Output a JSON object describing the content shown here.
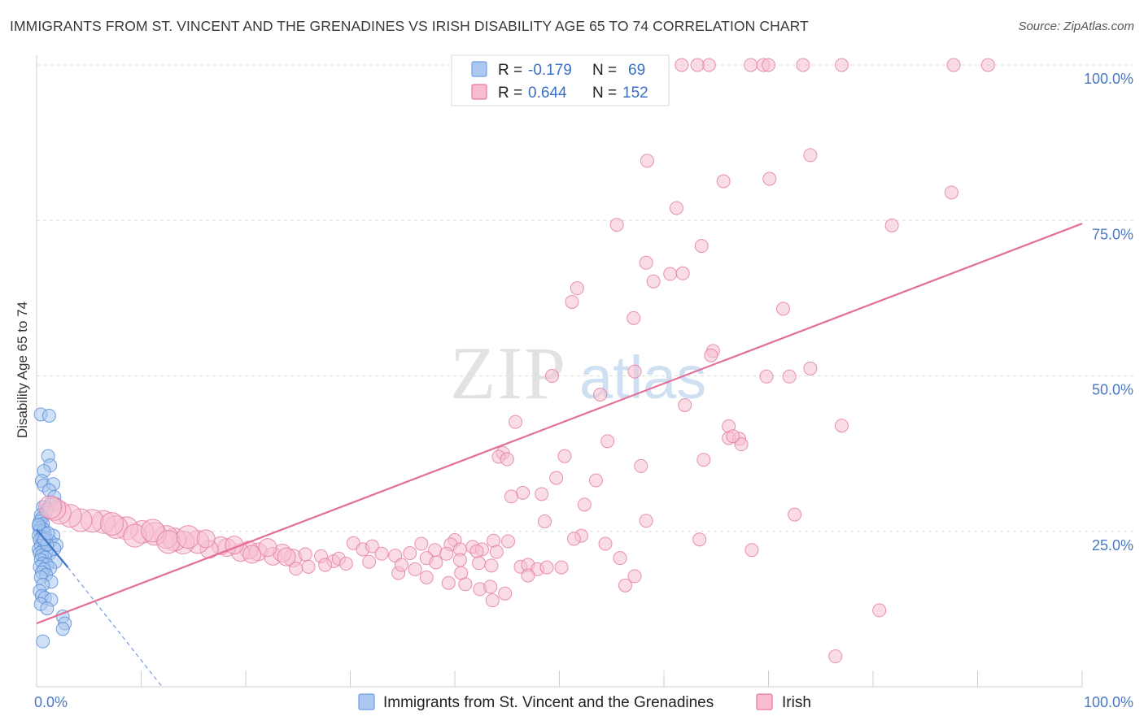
{
  "title": "IMMIGRANTS FROM ST. VINCENT AND THE GRENADINES VS IRISH DISABILITY AGE 65 TO 74 CORRELATION CHART",
  "source": "Source: ZipAtlas.com",
  "watermark": {
    "zip": "ZIP",
    "atlas": "atlas"
  },
  "chart_data": {
    "type": "scatter",
    "xlabel": "",
    "ylabel": "Disability Age 65 to 74",
    "xlim": [
      0,
      100
    ],
    "ylim": [
      0,
      100
    ],
    "x_tick_labels": [
      {
        "value": 0,
        "label": "0.0%"
      },
      {
        "value": 100,
        "label": "100.0%"
      }
    ],
    "y_tick_labels": [
      {
        "value": 25,
        "label": "25.0%"
      },
      {
        "value": 50,
        "label": "50.0%"
      },
      {
        "value": 75,
        "label": "75.0%"
      },
      {
        "value": 100,
        "label": "100.0%"
      }
    ],
    "grid": true,
    "legend_position": "top-center",
    "stats": [
      {
        "r_label": "R =",
        "r_value": "-0.179",
        "n_label": "N =",
        "n_value": "69",
        "color": "#6f9fe0",
        "fill": "#aac8f0"
      },
      {
        "r_label": "R =",
        "r_value": "0.644",
        "n_label": "N =",
        "n_value": "152",
        "color": "#e8799c",
        "fill": "#f7bccf"
      }
    ],
    "series": [
      {
        "name": "Immigrants from St. Vincent and the Grenadines",
        "color": "#5b8fd6",
        "fill": "#a9c6ee",
        "trend": {
          "x0": 0.0,
          "y0": 25.3,
          "x1": 3.0,
          "y1": 19.2,
          "dash_x1": 12.0,
          "dash_y1": 0.0
        },
        "points": [
          [
            0.4,
            43.8
          ],
          [
            1.2,
            43.6
          ],
          [
            1.1,
            37.1
          ],
          [
            1.3,
            35.6
          ],
          [
            0.7,
            34.7
          ],
          [
            0.5,
            33.1
          ],
          [
            0.7,
            32.4
          ],
          [
            1.6,
            32.6
          ],
          [
            1.2,
            31.6
          ],
          [
            1.7,
            30.5
          ],
          [
            1.4,
            29.6
          ],
          [
            1.8,
            29.4
          ],
          [
            0.6,
            28.9
          ],
          [
            1.0,
            28.6
          ],
          [
            0.9,
            28.0
          ],
          [
            0.4,
            27.6
          ],
          [
            0.5,
            27.1
          ],
          [
            0.3,
            26.6
          ],
          [
            0.6,
            26.2
          ],
          [
            0.2,
            25.9
          ],
          [
            0.4,
            25.6
          ],
          [
            0.7,
            25.3
          ],
          [
            0.3,
            25.1
          ],
          [
            0.6,
            24.9
          ],
          [
            0.8,
            24.6
          ],
          [
            0.2,
            24.3
          ],
          [
            1.6,
            24.3
          ],
          [
            0.5,
            24.1
          ],
          [
            0.9,
            23.9
          ],
          [
            0.3,
            23.6
          ],
          [
            1.3,
            23.4
          ],
          [
            0.6,
            23.2
          ],
          [
            1.9,
            22.8
          ],
          [
            0.4,
            22.7
          ],
          [
            0.8,
            22.5
          ],
          [
            1.7,
            22.2
          ],
          [
            0.2,
            22.1
          ],
          [
            0.6,
            21.9
          ],
          [
            0.9,
            21.7
          ],
          [
            0.3,
            21.5
          ],
          [
            1.2,
            21.4
          ],
          [
            0.5,
            21.1
          ],
          [
            0.8,
            20.8
          ],
          [
            0.4,
            20.4
          ],
          [
            1.8,
            20.1
          ],
          [
            0.6,
            19.8
          ],
          [
            1.0,
            19.6
          ],
          [
            0.3,
            19.3
          ],
          [
            1.3,
            19.1
          ],
          [
            0.7,
            18.9
          ],
          [
            0.5,
            18.4
          ],
          [
            0.9,
            18.0
          ],
          [
            0.4,
            17.6
          ],
          [
            1.4,
            16.9
          ],
          [
            0.6,
            16.4
          ],
          [
            0.3,
            15.4
          ],
          [
            0.5,
            14.6
          ],
          [
            0.8,
            14.3
          ],
          [
            1.4,
            14.0
          ],
          [
            0.4,
            13.3
          ],
          [
            1.0,
            12.6
          ],
          [
            2.5,
            11.3
          ],
          [
            2.7,
            10.2
          ],
          [
            2.5,
            9.3
          ],
          [
            0.6,
            7.3
          ],
          [
            1.0,
            22.9
          ],
          [
            0.7,
            23.7
          ],
          [
            1.1,
            24.7
          ],
          [
            0.2,
            26.1
          ]
        ]
      },
      {
        "name": "Irish",
        "color": "#e47fa0",
        "fill": "#f6bfd0",
        "trend": {
          "x0": 0.0,
          "y0": 10.2,
          "x1": 100.0,
          "y1": 74.5
        },
        "points": [
          [
            61.7,
            100
          ],
          [
            64.3,
            100
          ],
          [
            68.3,
            100
          ],
          [
            69.5,
            100
          ],
          [
            70.0,
            100
          ],
          [
            73.3,
            100
          ],
          [
            77.0,
            100
          ],
          [
            87.7,
            100
          ],
          [
            91.0,
            100
          ],
          [
            63.2,
            100
          ],
          [
            74.0,
            85.5
          ],
          [
            58.4,
            84.6
          ],
          [
            65.7,
            81.3
          ],
          [
            70.1,
            81.7
          ],
          [
            87.5,
            79.5
          ],
          [
            61.2,
            77.0
          ],
          [
            55.5,
            74.3
          ],
          [
            81.8,
            74.2
          ],
          [
            63.6,
            70.9
          ],
          [
            58.3,
            68.2
          ],
          [
            60.6,
            66.4
          ],
          [
            61.8,
            66.5
          ],
          [
            51.7,
            64.1
          ],
          [
            51.2,
            61.9
          ],
          [
            71.4,
            60.8
          ],
          [
            57.1,
            59.3
          ],
          [
            64.7,
            54.0
          ],
          [
            57.2,
            50.7
          ],
          [
            49.3,
            50.0
          ],
          [
            69.8,
            49.9
          ],
          [
            72.0,
            49.9
          ],
          [
            74.0,
            51.2
          ],
          [
            53.9,
            47.0
          ],
          [
            62.0,
            45.3
          ],
          [
            45.8,
            42.6
          ],
          [
            66.2,
            41.9
          ],
          [
            66.2,
            40.0
          ],
          [
            67.2,
            39.9
          ],
          [
            67.4,
            39.0
          ],
          [
            77.0,
            42.0
          ],
          [
            54.6,
            39.5
          ],
          [
            50.5,
            37.1
          ],
          [
            44.6,
            37.6
          ],
          [
            44.2,
            37.0
          ],
          [
            45.0,
            36.6
          ],
          [
            63.8,
            36.5
          ],
          [
            57.8,
            35.5
          ],
          [
            49.7,
            33.6
          ],
          [
            53.5,
            33.2
          ],
          [
            46.5,
            31.2
          ],
          [
            48.3,
            31.0
          ],
          [
            45.4,
            30.6
          ],
          [
            52.4,
            29.3
          ],
          [
            72.5,
            27.7
          ],
          [
            48.6,
            26.6
          ],
          [
            40.0,
            23.6
          ],
          [
            43.7,
            23.5
          ],
          [
            45.1,
            23.4
          ],
          [
            52.1,
            24.3
          ],
          [
            63.4,
            23.7
          ],
          [
            36.8,
            23.0
          ],
          [
            39.6,
            22.9
          ],
          [
            40.5,
            22.1
          ],
          [
            41.7,
            22.5
          ],
          [
            42.6,
            22.1
          ],
          [
            54.4,
            23.0
          ],
          [
            38.1,
            22.0
          ],
          [
            39.2,
            21.4
          ],
          [
            42.1,
            21.8
          ],
          [
            44.0,
            21.7
          ],
          [
            68.4,
            22.0
          ],
          [
            30.3,
            23.1
          ],
          [
            31.2,
            22.1
          ],
          [
            32.1,
            22.6
          ],
          [
            33.0,
            21.4
          ],
          [
            34.3,
            21.1
          ],
          [
            35.7,
            21.5
          ],
          [
            37.3,
            20.7
          ],
          [
            38.2,
            20.0
          ],
          [
            40.5,
            20.4
          ],
          [
            42.3,
            19.9
          ],
          [
            43.5,
            19.5
          ],
          [
            46.3,
            19.3
          ],
          [
            47.0,
            19.6
          ],
          [
            47.9,
            18.9
          ],
          [
            48.8,
            19.2
          ],
          [
            34.6,
            18.3
          ],
          [
            36.2,
            18.9
          ],
          [
            37.3,
            17.6
          ],
          [
            39.4,
            16.7
          ],
          [
            41.0,
            16.5
          ],
          [
            42.4,
            15.7
          ],
          [
            43.4,
            16.1
          ],
          [
            44.8,
            15.0
          ],
          [
            43.6,
            13.9
          ],
          [
            47.0,
            17.9
          ],
          [
            57.2,
            17.8
          ],
          [
            56.3,
            16.3
          ],
          [
            50.2,
            19.2
          ],
          [
            24.5,
            20.7
          ],
          [
            25.7,
            21.3
          ],
          [
            27.2,
            21.0
          ],
          [
            28.4,
            20.2
          ],
          [
            26.0,
            19.3
          ],
          [
            24.8,
            19.0
          ],
          [
            27.6,
            19.6
          ],
          [
            28.9,
            20.6
          ],
          [
            21.2,
            21.7
          ],
          [
            22.6,
            21.0
          ],
          [
            23.5,
            21.5
          ],
          [
            20.3,
            22.0
          ],
          [
            19.5,
            21.6
          ],
          [
            18.2,
            22.4
          ],
          [
            17.6,
            22.7
          ],
          [
            16.5,
            22.1
          ],
          [
            15.4,
            23.3
          ],
          [
            14.0,
            23.2
          ],
          [
            13.2,
            23.7
          ],
          [
            12.4,
            24.1
          ],
          [
            11.3,
            24.6
          ],
          [
            10.1,
            24.9
          ],
          [
            8.6,
            25.5
          ],
          [
            7.6,
            25.7
          ],
          [
            6.4,
            26.5
          ],
          [
            5.3,
            26.7
          ],
          [
            4.2,
            26.8
          ],
          [
            3.2,
            27.5
          ],
          [
            2.2,
            28.0
          ],
          [
            1.7,
            28.6
          ],
          [
            1.3,
            28.9
          ],
          [
            9.4,
            24.3
          ],
          [
            11.1,
            25.1
          ],
          [
            12.6,
            23.3
          ],
          [
            14.5,
            24.1
          ],
          [
            16.2,
            23.8
          ],
          [
            18.9,
            22.8
          ],
          [
            20.6,
            21.3
          ],
          [
            22.1,
            22.4
          ],
          [
            23.9,
            20.9
          ],
          [
            7.2,
            26.2
          ],
          [
            66.6,
            40.3
          ],
          [
            64.5,
            53.3
          ],
          [
            59.0,
            65.2
          ],
          [
            76.4,
            4.9
          ],
          [
            80.6,
            12.3
          ],
          [
            51.4,
            23.8
          ],
          [
            40.6,
            18.3
          ],
          [
            34.9,
            19.6
          ],
          [
            29.6,
            19.8
          ],
          [
            31.8,
            20.1
          ],
          [
            55.8,
            20.7
          ],
          [
            58.3,
            26.7
          ]
        ]
      }
    ]
  }
}
